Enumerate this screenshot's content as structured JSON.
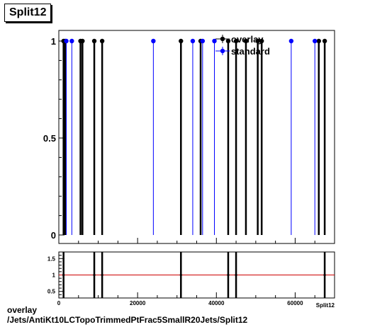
{
  "title": "Split12",
  "footer": {
    "line1": "overlay",
    "line2": "/Jets/AntiKt10LCTopoTrimmedPtFrac5SmallR20Jets/Split12"
  },
  "chart_data": [
    {
      "type": "scatter",
      "panel": "main",
      "xlim": [
        0,
        70000
      ],
      "ylim": [
        0,
        1.05
      ],
      "yticks": [
        "0",
        "0.5",
        "1"
      ],
      "legend": {
        "placement": "top-right",
        "entries": [
          {
            "name": "overlay",
            "color": "#000000"
          },
          {
            "name": "standard",
            "color": "#0000ff"
          }
        ]
      },
      "series": [
        {
          "name": "overlay",
          "color": "#000000",
          "x": [
            1200,
            1600,
            5500,
            6000,
            9000,
            11000,
            31000,
            36000,
            43000,
            45000,
            47500,
            50500,
            51500,
            66000,
            67500
          ],
          "y": [
            1,
            1,
            1,
            1,
            1,
            1,
            1,
            1,
            1,
            1,
            1,
            1,
            1,
            1,
            1
          ]
        },
        {
          "name": "standard",
          "color": "#0000ff",
          "x": [
            1900,
            3300,
            24000,
            34000,
            36500,
            39500,
            59000,
            65000
          ],
          "y": [
            1,
            1,
            1,
            1,
            1,
            1,
            1,
            1
          ]
        }
      ]
    },
    {
      "type": "scatter",
      "panel": "ratio",
      "xlim": [
        0,
        70000
      ],
      "ylim": [
        0.3,
        1.7
      ],
      "xticks": [
        "0",
        "20000",
        "40000",
        "60000"
      ],
      "yticks": [
        "0.5",
        "1",
        "1.5"
      ],
      "xlabel": "Split12",
      "reference_line": {
        "y": 1,
        "color": "#cc0000"
      },
      "series": [
        {
          "name": "ratio",
          "color": "#000000",
          "x": [
            1200,
            9000,
            11000,
            31000,
            43000,
            45000,
            67500
          ],
          "y": [
            1,
            1,
            1,
            1,
            1,
            1,
            1
          ]
        }
      ]
    }
  ]
}
